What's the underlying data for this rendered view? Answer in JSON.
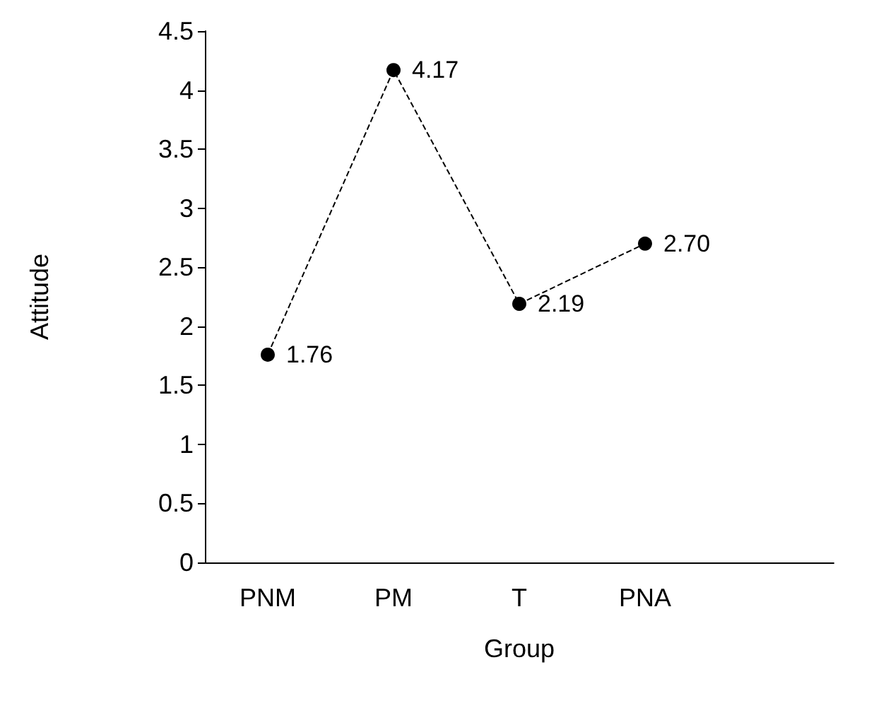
{
  "chart_data": {
    "type": "line",
    "xlabel": "Group",
    "ylabel": "Attitude",
    "categories": [
      "PNM",
      "PM",
      "T",
      "PNA",
      null
    ],
    "series": [
      {
        "color": "#000000",
        "values": [
          1.76,
          4.17,
          2.19,
          2.7,
          null
        ],
        "value_labels": [
          "1.76",
          "4.17",
          "2.19",
          "2.70",
          null
        ]
      }
    ],
    "ylim": [
      0,
      4.5
    ],
    "yticks": [
      0,
      0.5,
      1,
      1.5,
      2,
      2.5,
      3,
      3.5,
      4,
      4.5
    ],
    "grid": false,
    "marker": "circle",
    "line_style": "dashed"
  }
}
